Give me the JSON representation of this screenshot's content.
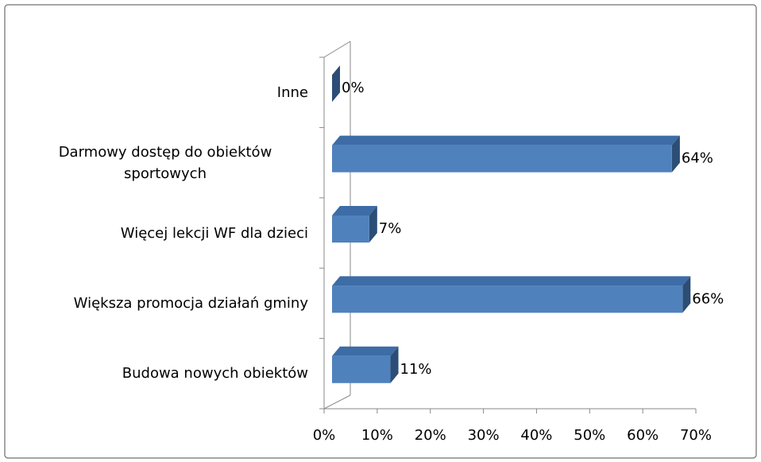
{
  "chart_data": {
    "type": "bar",
    "orientation": "horizontal",
    "categories": [
      "Budowa nowych obiektów",
      "Większa promocja działań gminy",
      "Więcej lekcji WF dla dzieci",
      "Darmowy dostęp do obiektów sportowych",
      "Inne"
    ],
    "values": [
      11,
      66,
      7,
      64,
      0
    ],
    "value_labels": [
      "11%",
      "66%",
      "7%",
      "64%",
      "0%"
    ],
    "color": "#4f81bd",
    "xlim": [
      0,
      70
    ],
    "xticks": [
      {
        "value": 0,
        "label": "0%"
      },
      {
        "value": 10,
        "label": "10%"
      },
      {
        "value": 20,
        "label": "20%"
      },
      {
        "value": 30,
        "label": "30%"
      },
      {
        "value": 40,
        "label": "40%"
      },
      {
        "value": 50,
        "label": "50%"
      },
      {
        "value": 60,
        "label": "60%"
      },
      {
        "value": 70,
        "label": "70%"
      }
    ]
  }
}
